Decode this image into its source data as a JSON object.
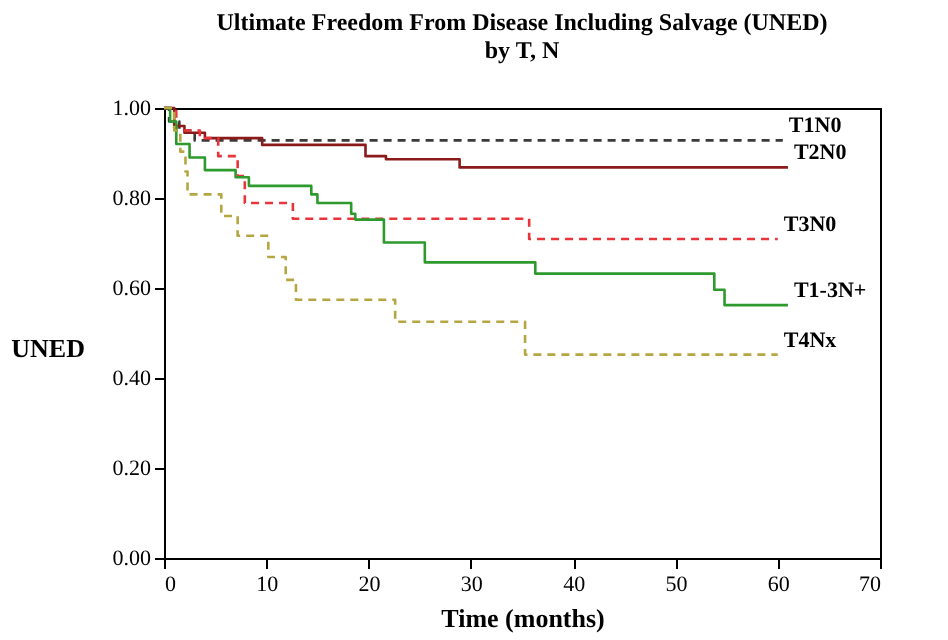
{
  "chart_data": {
    "type": "step",
    "title": "Ultimate Freedom From Disease Including Salvage (UNED)",
    "subtitle": "by T, N",
    "xlabel": "Time (months)",
    "ylabel": "UNED",
    "xlim": [
      0,
      70
    ],
    "xticks": [
      0,
      10,
      20,
      30,
      40,
      50,
      60,
      70
    ],
    "ylim": [
      0,
      1
    ],
    "yticks": [
      {
        "value": 0,
        "label": "0.00"
      },
      {
        "value": 0.2,
        "label": "0.20"
      },
      {
        "value": 0.4,
        "label": "0.40"
      },
      {
        "value": 0.6,
        "label": "0.60"
      },
      {
        "value": 0.8,
        "label": "0.80"
      },
      {
        "value": 1,
        "label": "1.00"
      }
    ],
    "grid": false,
    "legend": false,
    "marker": "none",
    "series": [
      {
        "name": "T1N0",
        "color": "#3a3a3a",
        "line_style": "dashed",
        "x": [
          0,
          0.5,
          1.5,
          3,
          60.5
        ],
        "values": [
          1,
          0.97,
          0.95,
          0.928,
          0.928
        ]
      },
      {
        "name": "T2N0",
        "color": "#8b1a1a",
        "line_style": "solid",
        "x": [
          0,
          1,
          2,
          4,
          9.6,
          19.7,
          21.7,
          28.9,
          61
        ],
        "values": [
          1,
          0.96,
          0.945,
          0.933,
          0.918,
          0.893,
          0.886,
          0.868,
          0.868
        ]
      },
      {
        "name": "T3N0",
        "color": "#e8343a",
        "line_style": "dashed",
        "x": [
          0,
          1.2,
          3.5,
          5.3,
          7.2,
          7.9,
          12.6,
          35.7,
          60
        ],
        "values": [
          1,
          0.95,
          0.933,
          0.893,
          0.849,
          0.789,
          0.754,
          0.709,
          0.709
        ]
      },
      {
        "name": "T1-3N+",
        "color": "#2e9a2e",
        "line_style": "solid",
        "x": [
          0,
          0.6,
          1.2,
          2.5,
          4,
          7,
          8.3,
          14.4,
          15,
          18.3,
          18.7,
          21.5,
          25.5,
          36.3,
          53.8,
          54.8,
          61
        ],
        "values": [
          1,
          0.97,
          0.92,
          0.89,
          0.862,
          0.846,
          0.827,
          0.808,
          0.789,
          0.765,
          0.752,
          0.701,
          0.657,
          0.632,
          0.596,
          0.562,
          0.562
        ]
      },
      {
        "name": "T4Nx",
        "color": "#b5a642",
        "line_style": "dashed",
        "x": [
          0,
          1,
          1.6,
          2.1,
          2.3,
          5.6,
          7.2,
          10.2,
          11.9,
          12.9,
          22.6,
          35.3,
          60
        ],
        "values": [
          1,
          0.95,
          0.903,
          0.859,
          0.808,
          0.76,
          0.716,
          0.669,
          0.618,
          0.574,
          0.525,
          0.452,
          0.452
        ]
      }
    ]
  }
}
